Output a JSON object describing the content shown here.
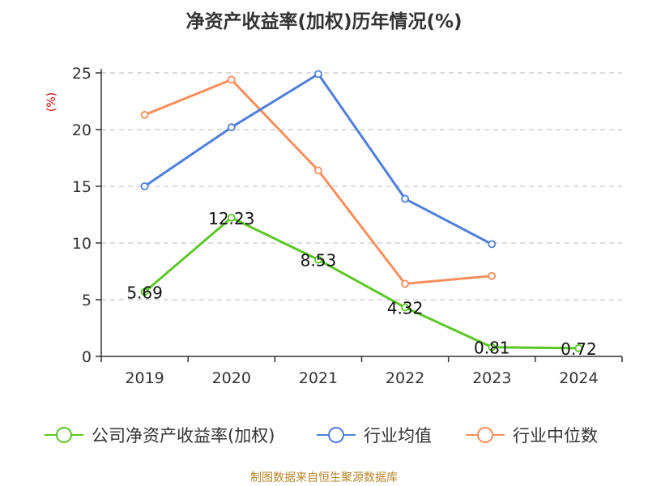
{
  "chart_data": {
    "type": "line",
    "title": "净资产收益率(加权)历年情况(%)",
    "ylabel": "(%)",
    "xlabel": "",
    "categories": [
      "2019",
      "2020",
      "2021",
      "2022",
      "2023",
      "2024"
    ],
    "ylim": [
      0,
      25
    ],
    "yticks": [
      "0",
      "5",
      "10",
      "15",
      "20",
      "25"
    ],
    "grid": true,
    "legend_position": "bottom",
    "series": [
      {
        "name": "公司净资产收益率(加权)",
        "color": "#5bc726",
        "values": [
          5.69,
          12.23,
          8.53,
          4.32,
          0.81,
          0.72
        ],
        "labels": [
          "5.69",
          "12.23",
          "8.53",
          "4.32",
          "0.81",
          "0.72"
        ]
      },
      {
        "name": "行业均值",
        "color": "#4f7fd9",
        "values": [
          15.0,
          20.2,
          24.9,
          13.9,
          9.9,
          null
        ]
      },
      {
        "name": "行业中位数",
        "color": "#f98e5b",
        "values": [
          21.3,
          24.4,
          16.4,
          6.4,
          7.1,
          null
        ]
      }
    ]
  },
  "footer": {
    "source": "制图数据来自恒生聚源数据库"
  }
}
